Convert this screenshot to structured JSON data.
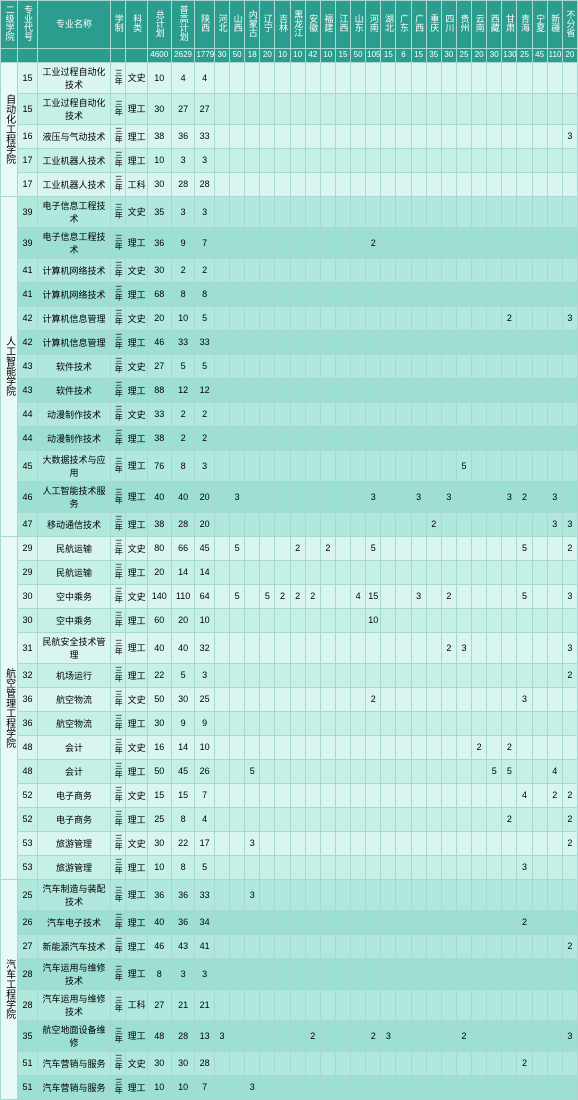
{
  "headers": [
    "二级学院",
    "专业代号",
    "专业名称",
    "学制",
    "科类",
    "总计划",
    "普高计划",
    "陕西",
    "河北",
    "山西",
    "内蒙古",
    "辽宁",
    "吉林",
    "黑龙江",
    "安徽",
    "福建",
    "江西",
    "山东",
    "河南",
    "湖北",
    "广东",
    "广西",
    "重庆",
    "四川",
    "贵州",
    "云南",
    "西藏",
    "甘肃",
    "青海",
    "宁夏",
    "新疆",
    "不分省"
  ],
  "sums": [
    "",
    "",
    "",
    "",
    "",
    "4600",
    "2629",
    "1779",
    "30",
    "50",
    "18",
    "20",
    "10",
    "10",
    "42",
    "10",
    "15",
    "50",
    "105",
    "15",
    "6",
    "15",
    "35",
    "30",
    "25",
    "20",
    "30",
    "130",
    "25",
    "45",
    "110",
    "20"
  ],
  "groups": [
    {
      "name": "自动化工程学院",
      "color": 1,
      "rows": [
        [
          "15",
          "工业过程自动化技术",
          "三年",
          "文史",
          "10",
          "4",
          "4"
        ],
        [
          "15",
          "工业过程自动化技术",
          "三年",
          "理工",
          "30",
          "27",
          "27"
        ],
        [
          "16",
          "液压与气动技术",
          "三年",
          "理工",
          "38",
          "36",
          "33",
          "",
          "",
          "",
          "",
          "",
          "",
          "",
          "",
          "",
          "",
          "",
          "",
          "",
          "",
          "",
          "",
          "",
          "",
          "",
          "",
          "",
          "",
          "",
          "3"
        ],
        [
          "17",
          "工业机器人技术",
          "三年",
          "理工",
          "10",
          "3",
          "3"
        ],
        [
          "17",
          "工业机器人技术",
          "三年",
          "工科",
          "30",
          "28",
          "28"
        ]
      ]
    },
    {
      "name": "人工智能学院",
      "color": 2,
      "rows": [
        [
          "39",
          "电子信息工程技术",
          "三年",
          "文史",
          "35",
          "3",
          "3"
        ],
        [
          "39",
          "电子信息工程技术",
          "三年",
          "理工",
          "36",
          "9",
          "7",
          "",
          "",
          "",
          "",
          "",
          "",
          "",
          "",
          "",
          "",
          "2"
        ],
        [
          "41",
          "计算机网络技术",
          "三年",
          "文史",
          "30",
          "2",
          "2"
        ],
        [
          "41",
          "计算机网络技术",
          "三年",
          "理工",
          "68",
          "8",
          "8"
        ],
        [
          "42",
          "计算机信息管理",
          "三年",
          "文史",
          "20",
          "10",
          "5",
          "",
          "",
          "",
          "",
          "",
          "",
          "",
          "",
          "",
          "",
          "",
          "",
          "",
          "",
          "",
          "",
          "",
          "",
          "",
          "2",
          "",
          "",
          "",
          "3"
        ],
        [
          "42",
          "计算机信息管理",
          "三年",
          "理工",
          "46",
          "33",
          "33"
        ],
        [
          "43",
          "软件技术",
          "三年",
          "文史",
          "27",
          "5",
          "5"
        ],
        [
          "43",
          "软件技术",
          "三年",
          "理工",
          "88",
          "12",
          "12"
        ],
        [
          "44",
          "动漫制作技术",
          "三年",
          "文史",
          "33",
          "2",
          "2"
        ],
        [
          "44",
          "动漫制作技术",
          "三年",
          "理工",
          "38",
          "2",
          "2"
        ],
        [
          "45",
          "大数据技术与应用",
          "三年",
          "理工",
          "76",
          "8",
          "3",
          "",
          "",
          "",
          "",
          "",
          "",
          "",
          "",
          "",
          "",
          "",
          "",
          "",
          "",
          "",
          "",
          "5"
        ],
        [
          "46",
          "人工智能技术服务",
          "三年",
          "理工",
          "40",
          "40",
          "20",
          "",
          "3",
          "",
          "",
          "",
          "",
          "",
          "",
          "",
          "",
          "3",
          "",
          "",
          "3",
          "",
          "3",
          "",
          "",
          "",
          "3",
          "2",
          "",
          "3"
        ],
        [
          "47",
          "移动通信技术",
          "三年",
          "理工",
          "38",
          "28",
          "20",
          "",
          "",
          "",
          "",
          "",
          "",
          "",
          "",
          "",
          "",
          "",
          "",
          "",
          "",
          "2",
          "",
          "",
          "",
          "",
          "",
          "",
          "",
          "3",
          "3"
        ]
      ]
    },
    {
      "name": "航空管理工程学院",
      "color": 1,
      "rows": [
        [
          "29",
          "民航运输",
          "三年",
          "文史",
          "80",
          "66",
          "45",
          "",
          "5",
          "",
          "",
          "",
          "2",
          "",
          "2",
          "",
          "",
          "5",
          "",
          "",
          "",
          "",
          "",
          "",
          "",
          "",
          "",
          "5",
          "",
          "",
          "2"
        ],
        [
          "29",
          "民航运输",
          "三年",
          "理工",
          "20",
          "14",
          "14"
        ],
        [
          "30",
          "空中乘务",
          "三年",
          "文史",
          "140",
          "110",
          "64",
          "",
          "5",
          "",
          "5",
          "2",
          "2",
          "2",
          "",
          "",
          "4",
          "15",
          "",
          "",
          "3",
          "",
          "2",
          "",
          "",
          "",
          "",
          "5",
          "",
          "",
          "3"
        ],
        [
          "30",
          "空中乘务",
          "三年",
          "理工",
          "60",
          "20",
          "10",
          "",
          "",
          "",
          "",
          "",
          "",
          "",
          "",
          "",
          "",
          "10"
        ],
        [
          "31",
          "民航安全技术管理",
          "三年",
          "理工",
          "40",
          "40",
          "32",
          "",
          "",
          "",
          "",
          "",
          "",
          "",
          "",
          "",
          "",
          "",
          "",
          "",
          "",
          "",
          "2",
          "3",
          "",
          "",
          "",
          "",
          "",
          "",
          "3"
        ],
        [
          "32",
          "机场运行",
          "三年",
          "理工",
          "22",
          "5",
          "3",
          "",
          "",
          "",
          "",
          "",
          "",
          "",
          "",
          "",
          "",
          "",
          "",
          "",
          "",
          "",
          "",
          "",
          "",
          "",
          "",
          "",
          "",
          "",
          "2"
        ],
        [
          "36",
          "航空物流",
          "三年",
          "文史",
          "50",
          "30",
          "25",
          "",
          "",
          "",
          "",
          "",
          "",
          "",
          "",
          "",
          "",
          "2",
          "",
          "",
          "",
          "",
          "",
          "",
          "",
          "",
          "",
          "3"
        ],
        [
          "36",
          "航空物流",
          "三年",
          "理工",
          "30",
          "9",
          "9"
        ],
        [
          "48",
          "会计",
          "三年",
          "文史",
          "16",
          "14",
          "10",
          "",
          "",
          "",
          "",
          "",
          "",
          "",
          "",
          "",
          "",
          "",
          "",
          "",
          "",
          "",
          "",
          "",
          "2",
          "",
          "2"
        ],
        [
          "48",
          "会计",
          "三年",
          "理工",
          "50",
          "45",
          "26",
          "",
          "",
          "5",
          "",
          "",
          "",
          "",
          "",
          "",
          "",
          "",
          "",
          "",
          "",
          "",
          "",
          "",
          "",
          "5",
          "5",
          "",
          "",
          "4"
        ],
        [
          "52",
          "电子商务",
          "三年",
          "文史",
          "15",
          "15",
          "7",
          "",
          "",
          "",
          "",
          "",
          "",
          "",
          "",
          "",
          "",
          "",
          "",
          "",
          "",
          "",
          "",
          "",
          "",
          "",
          "",
          "4",
          "",
          "2",
          "2"
        ],
        [
          "52",
          "电子商务",
          "三年",
          "理工",
          "25",
          "8",
          "4",
          "",
          "",
          "",
          "",
          "",
          "",
          "",
          "",
          "",
          "",
          "",
          "",
          "",
          "",
          "",
          "",
          "",
          "",
          "",
          "2",
          "",
          "",
          "",
          "2"
        ],
        [
          "53",
          "旅游管理",
          "三年",
          "文史",
          "30",
          "22",
          "17",
          "",
          "",
          "3",
          "",
          "",
          "",
          "",
          "",
          "",
          "",
          "",
          "",
          "",
          "",
          "",
          "",
          "",
          "",
          "",
          "",
          "",
          "",
          "",
          "2"
        ],
        [
          "53",
          "旅游管理",
          "三年",
          "理工",
          "10",
          "8",
          "5",
          "",
          "",
          "",
          "",
          "",
          "",
          "",
          "",
          "",
          "",
          "",
          "",
          "",
          "",
          "",
          "",
          "",
          "",
          "",
          "",
          "3"
        ]
      ]
    },
    {
      "name": "汽车工程学院",
      "color": 2,
      "rows": [
        [
          "25",
          "汽车制造与装配技术",
          "三年",
          "理工",
          "36",
          "36",
          "33",
          "",
          "",
          "3"
        ],
        [
          "26",
          "汽车电子技术",
          "三年",
          "理工",
          "40",
          "36",
          "34",
          "",
          "",
          "",
          "",
          "",
          "",
          "",
          "",
          "",
          "",
          "",
          "",
          "",
          "",
          "",
          "",
          "",
          "",
          "",
          "",
          "2"
        ],
        [
          "27",
          "新能源汽车技术",
          "三年",
          "理工",
          "46",
          "43",
          "41",
          "",
          "",
          "",
          "",
          "",
          "",
          "",
          "",
          "",
          "",
          "",
          "",
          "",
          "",
          "",
          "",
          "",
          "",
          "",
          "",
          "",
          "",
          "",
          "2"
        ],
        [
          "28",
          "汽车运用与维修技术",
          "三年",
          "理工",
          "8",
          "3",
          "3"
        ],
        [
          "28",
          "汽车运用与维修技术",
          "三年",
          "工科",
          "27",
          "21",
          "21"
        ],
        [
          "35",
          "航空地面设备维修",
          "三年",
          "理工",
          "48",
          "28",
          "13",
          "3",
          "",
          "",
          "",
          "",
          "",
          "2",
          "",
          "",
          "",
          "2",
          "3",
          "",
          "",
          "",
          "",
          "2",
          "",
          "",
          "",
          "",
          "",
          "",
          "3"
        ],
        [
          "51",
          "汽车营销与服务",
          "三年",
          "文史",
          "30",
          "30",
          "28",
          "",
          "",
          "",
          "",
          "",
          "",
          "",
          "",
          "",
          "",
          "",
          "",
          "",
          "",
          "",
          "",
          "",
          "",
          "",
          "",
          "2"
        ],
        [
          "51",
          "汽车营销与服务",
          "三年",
          "理工",
          "10",
          "10",
          "7",
          "",
          "",
          "3"
        ]
      ]
    }
  ]
}
